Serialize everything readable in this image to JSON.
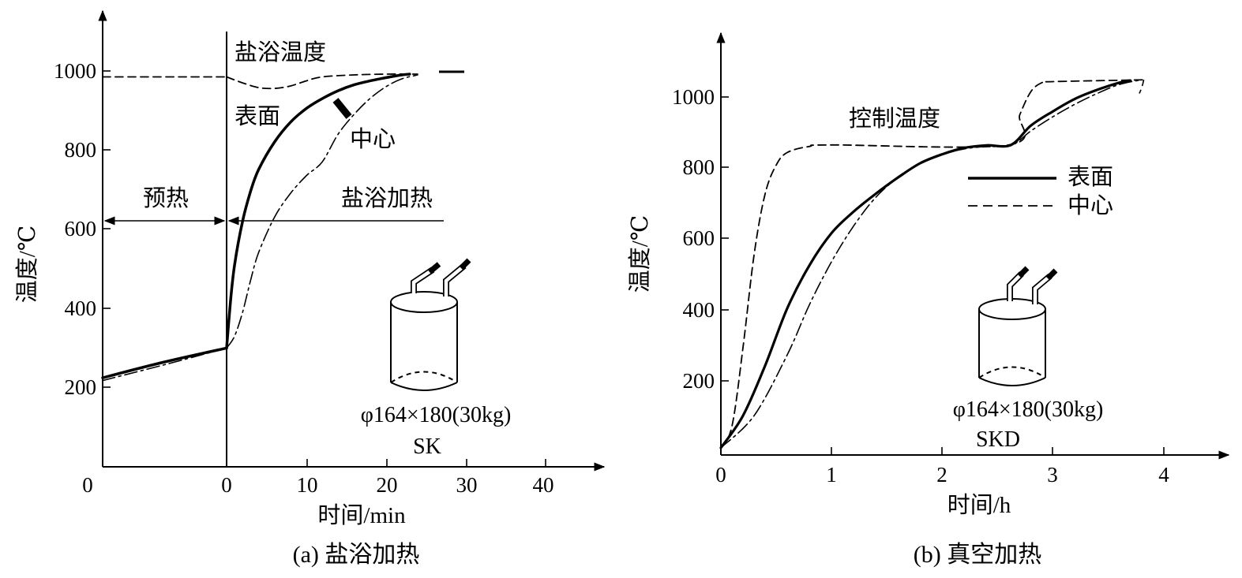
{
  "chart_data": [
    {
      "type": "line",
      "caption": "(a) 盐浴加热",
      "xlabel": "时间/min",
      "ylabel": "温度/℃",
      "x_ticks": [
        "0",
        "0",
        "10",
        "20",
        "30",
        "40"
      ],
      "y_ticks": [
        "200",
        "400",
        "600",
        "800",
        "1000"
      ],
      "ylim": [
        0,
        1100
      ],
      "phases": {
        "preheat": "预热",
        "salt_bath": "盐浴加热"
      },
      "annotations": {
        "bath_temp": "盐浴温度",
        "surface": "表面",
        "center": "中心",
        "specimen_size": "φ164×180(30kg)",
        "specimen_grade": "SK"
      },
      "series": [
        {
          "key": "bath",
          "style": "dashed",
          "preheat_points": [
            [
              0,
              985
            ],
            [
              1,
              985
            ]
          ],
          "points": [
            [
              0,
              985
            ],
            [
              2,
              970
            ],
            [
              4,
              958
            ],
            [
              6,
              956
            ],
            [
              8,
              962
            ],
            [
              10,
              975
            ],
            [
              12,
              985
            ],
            [
              16,
              990
            ],
            [
              20,
              992
            ],
            [
              24,
              992
            ]
          ]
        },
        {
          "key": "surface",
          "style": "thick",
          "preheat_points": [
            [
              0,
              225
            ],
            [
              0.5,
              265
            ],
            [
              1,
              300
            ]
          ],
          "points": [
            [
              0,
              300
            ],
            [
              0.5,
              420
            ],
            [
              1,
              510
            ],
            [
              2,
              620
            ],
            [
              3,
              695
            ],
            [
              4,
              750
            ],
            [
              6,
              820
            ],
            [
              8,
              870
            ],
            [
              10,
              905
            ],
            [
              12,
              930
            ],
            [
              14,
              950
            ],
            [
              16,
              965
            ],
            [
              18,
              975
            ],
            [
              20,
              983
            ],
            [
              22,
              990
            ],
            [
              23,
              992
            ]
          ]
        },
        {
          "key": "center",
          "style": "dash-dot",
          "preheat_points": [
            [
              0,
              218
            ],
            [
              0.5,
              258
            ],
            [
              1,
              300
            ]
          ],
          "points": [
            [
              0,
              300
            ],
            [
              1,
              330
            ],
            [
              2,
              390
            ],
            [
              3,
              470
            ],
            [
              4,
              540
            ],
            [
              6,
              630
            ],
            [
              8,
              690
            ],
            [
              10,
              735
            ],
            [
              12,
              770
            ],
            [
              14,
              840
            ],
            [
              16,
              890
            ],
            [
              18,
              930
            ],
            [
              20,
              960
            ],
            [
              22,
              980
            ],
            [
              24,
              990
            ]
          ]
        }
      ]
    },
    {
      "type": "line",
      "caption": "(b) 真空加热",
      "xlabel": "时间/h",
      "ylabel": "温度/℃",
      "x_ticks": [
        "0",
        "1",
        "2",
        "3",
        "4"
      ],
      "y_ticks": [
        "200",
        "400",
        "600",
        "800",
        "1000"
      ],
      "xlim": [
        0,
        4.5
      ],
      "ylim": [
        0,
        1120
      ],
      "annotations": {
        "control_temp": "控制温度",
        "specimen_size": "φ164×180(30kg)",
        "specimen_grade": "SKD"
      },
      "legend": {
        "surface": "表面",
        "center": "中心"
      },
      "series": [
        {
          "key": "control",
          "style": "dashed",
          "points": [
            [
              0,
              20
            ],
            [
              0.1,
              80
            ],
            [
              0.2,
              300
            ],
            [
              0.3,
              560
            ],
            [
              0.4,
              730
            ],
            [
              0.5,
              810
            ],
            [
              0.6,
              845
            ],
            [
              0.8,
              862
            ],
            [
              1.0,
              866
            ],
            [
              2.6,
              866
            ],
            [
              2.7,
              950
            ],
            [
              2.8,
              1015
            ],
            [
              2.9,
              1040
            ],
            [
              3.0,
              1043
            ],
            [
              3.82,
              1048
            ]
          ]
        },
        {
          "key": "surface",
          "style": "solid",
          "points": [
            [
              0,
              20
            ],
            [
              0.2,
              110
            ],
            [
              0.4,
              250
            ],
            [
              0.6,
              410
            ],
            [
              0.8,
              530
            ],
            [
              1.0,
              620
            ],
            [
              1.2,
              680
            ],
            [
              1.4,
              730
            ],
            [
              1.6,
              775
            ],
            [
              1.8,
              815
            ],
            [
              2.0,
              840
            ],
            [
              2.2,
              858
            ],
            [
              2.4,
              865
            ],
            [
              2.62,
              866
            ],
            [
              2.8,
              920
            ],
            [
              3.0,
              960
            ],
            [
              3.2,
              995
            ],
            [
              3.4,
              1020
            ],
            [
              3.6,
              1040
            ],
            [
              3.7,
              1046
            ]
          ]
        },
        {
          "key": "center",
          "style": "dash-dot",
          "points": [
            [
              0,
              20
            ],
            [
              0.3,
              110
            ],
            [
              0.6,
              280
            ],
            [
              0.8,
              420
            ],
            [
              1.0,
              540
            ],
            [
              1.2,
              640
            ],
            [
              1.4,
              720
            ],
            [
              1.6,
              775
            ],
            [
              1.8,
              815
            ],
            [
              2.0,
              840
            ],
            [
              2.2,
              855
            ],
            [
              2.4,
              862
            ],
            [
              2.62,
              864
            ],
            [
              2.8,
              905
            ],
            [
              3.0,
              945
            ],
            [
              3.2,
              980
            ],
            [
              3.4,
              1010
            ],
            [
              3.6,
              1035
            ],
            [
              3.8,
              1048
            ]
          ]
        }
      ]
    }
  ]
}
